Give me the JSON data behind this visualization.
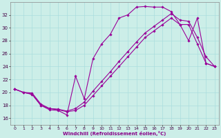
{
  "xlabel": "Windchill (Refroidissement éolien,°C)",
  "bg_color": "#cceee8",
  "line_color": "#990099",
  "xlim": [
    -0.5,
    23.5
  ],
  "ylim": [
    15.0,
    34.0
  ],
  "yticks": [
    16,
    18,
    20,
    22,
    24,
    26,
    28,
    30,
    32
  ],
  "xticks": [
    0,
    1,
    2,
    3,
    4,
    5,
    6,
    7,
    8,
    9,
    10,
    11,
    12,
    13,
    14,
    15,
    16,
    17,
    18,
    19,
    20,
    21,
    22,
    23
  ],
  "series1_x": [
    0,
    1,
    2,
    3,
    4,
    5,
    6,
    7,
    8,
    9,
    10,
    11,
    12,
    13,
    14,
    15,
    16,
    17,
    18,
    19,
    20,
    21,
    22,
    23
  ],
  "series1_y": [
    20.5,
    20.0,
    19.7,
    18.0,
    17.3,
    17.2,
    16.5,
    22.5,
    19.0,
    25.2,
    27.5,
    29.0,
    31.5,
    32.0,
    33.2,
    33.3,
    33.2,
    33.2,
    32.5,
    30.5,
    28.0,
    31.5,
    24.5,
    24.0
  ],
  "series2_x": [
    0,
    1,
    2,
    3,
    4,
    5,
    6,
    7,
    8,
    9,
    10,
    11,
    12,
    13,
    14,
    15,
    16,
    17,
    18,
    19,
    20,
    21,
    22,
    23
  ],
  "series2_y": [
    20.5,
    20.0,
    19.7,
    18.0,
    17.5,
    17.3,
    17.0,
    17.2,
    18.0,
    19.5,
    21.0,
    22.5,
    24.0,
    25.5,
    27.0,
    28.5,
    29.5,
    30.5,
    31.5,
    30.5,
    30.5,
    27.5,
    24.5,
    24.0
  ],
  "series3_x": [
    0,
    1,
    2,
    3,
    4,
    5,
    6,
    7,
    8,
    9,
    10,
    11,
    12,
    13,
    14,
    15,
    16,
    17,
    18,
    19,
    20,
    21,
    22,
    23
  ],
  "series3_y": [
    20.5,
    20.0,
    19.9,
    18.2,
    17.5,
    17.4,
    17.1,
    17.5,
    18.5,
    20.2,
    21.7,
    23.2,
    24.8,
    26.3,
    27.8,
    29.2,
    30.2,
    31.2,
    32.2,
    31.2,
    31.0,
    28.5,
    25.5,
    24.0
  ]
}
